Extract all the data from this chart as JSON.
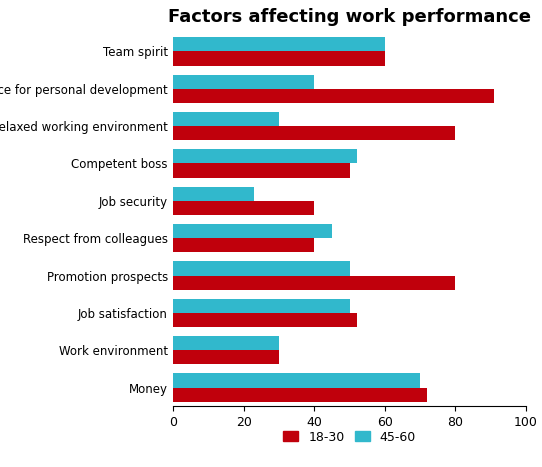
{
  "title": "Factors affecting work performance",
  "categories": [
    "Team spirit",
    "Chance for personal development",
    "Relaxed working environment",
    "Competent boss",
    "Job security",
    "Respect from colleagues",
    "Promotion prospects",
    "Job satisfaction",
    "Work environment",
    "Money"
  ],
  "series": {
    "18-30": [
      60,
      91,
      80,
      50,
      40,
      40,
      80,
      52,
      30,
      72
    ],
    "45-60": [
      60,
      40,
      30,
      52,
      23,
      45,
      50,
      50,
      30,
      70
    ]
  },
  "colors": {
    "18-30": "#C0000C",
    "45-60": "#31B8CC"
  },
  "xlim": [
    0,
    100
  ],
  "xticks": [
    0,
    20,
    40,
    60,
    80,
    100
  ],
  "legend_labels": [
    "18-30",
    "45-60"
  ],
  "background_color": "#ffffff",
  "bar_height": 0.38,
  "title_fontsize": 13
}
